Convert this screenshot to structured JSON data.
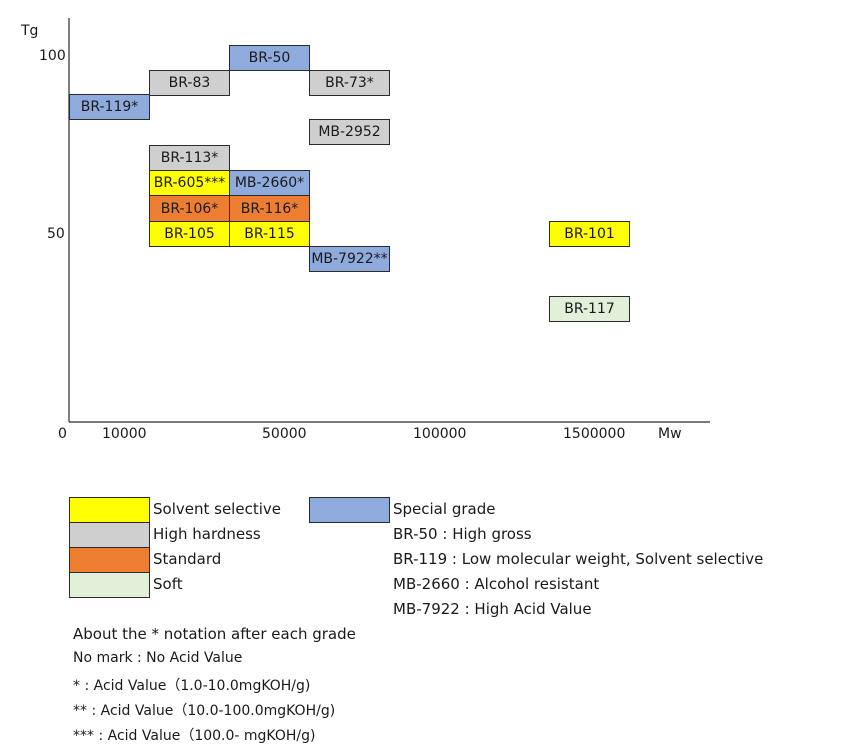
{
  "colors": {
    "solvent": "#ffff00",
    "hardness": "#d0cfcf",
    "standard": "#ed7d31",
    "soft": "#e2efd9",
    "special": "#8faadc",
    "axis": "#2b2b2b"
  },
  "axes": {
    "y_label": "Tg",
    "x_label": "Mw",
    "y_ticks": [
      "100",
      "50"
    ],
    "x_ticks": [
      "0",
      "10000",
      "50000",
      "100000",
      "1500000"
    ]
  },
  "grades": [
    {
      "label": "BR-50",
      "category": "special"
    },
    {
      "label": "BR-83",
      "category": "hardness"
    },
    {
      "label": "BR-73*",
      "category": "hardness"
    },
    {
      "label": "BR-119*",
      "category": "special"
    },
    {
      "label": "MB-2952",
      "category": "hardness"
    },
    {
      "label": "BR-113*",
      "category": "hardness"
    },
    {
      "label": "BR-605***",
      "category": "solvent"
    },
    {
      "label": "MB-2660*",
      "category": "special"
    },
    {
      "label": "BR-106*",
      "category": "standard"
    },
    {
      "label": "BR-116*",
      "category": "standard"
    },
    {
      "label": "BR-105",
      "category": "solvent"
    },
    {
      "label": "BR-115",
      "category": "solvent"
    },
    {
      "label": "BR-101",
      "category": "solvent"
    },
    {
      "label": "MB-7922**",
      "category": "special"
    },
    {
      "label": "BR-117",
      "category": "soft"
    }
  ],
  "legend": {
    "solvent": "Solvent selective",
    "hardness": "High hardness",
    "standard": "Standard",
    "soft": "Soft",
    "special": "Special grade",
    "special_notes": [
      "BR-50 : High gross",
      "BR-119 : Low molecular weight, Solvent selective",
      "MB-2660 : Alcohol resistant",
      "MB-7922 : High Acid Value"
    ]
  },
  "notes": [
    "About the * notation after each grade",
    "No mark : No Acid Value",
    "* : Acid Value（1.0-10.0mgKOH/g)",
    "** : Acid Value（10.0-100.0mgKOH/g)",
    "*** : Acid Value（100.0- mgKOH/g)"
  ]
}
